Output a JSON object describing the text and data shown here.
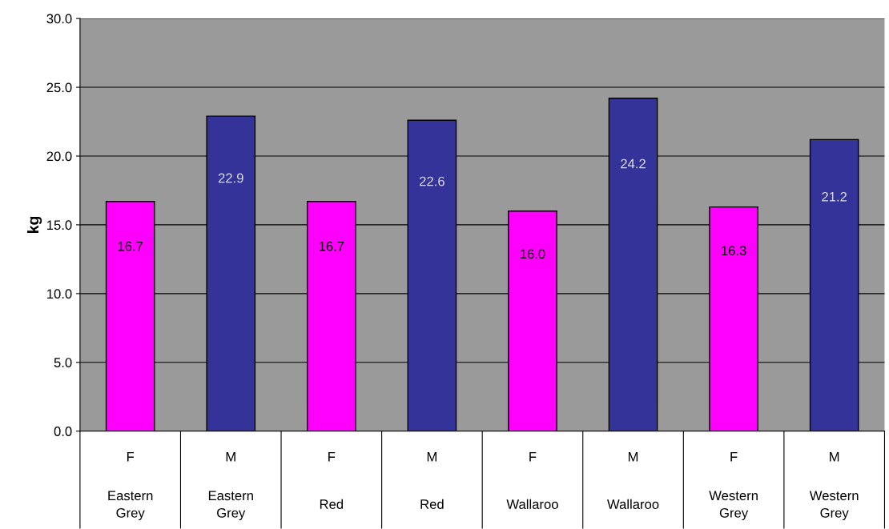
{
  "chart_data": {
    "type": "bar",
    "ylabel": "kg",
    "categories": [
      "F\nEastern\nGrey",
      "M\nEastern\nGrey",
      "F\nRed",
      "M\nRed",
      "F\nWallaroo",
      "M\nWallaroo",
      "F\nWestern\nGrey",
      "M\nWestern\nGrey"
    ],
    "values": [
      16.7,
      22.9,
      16.7,
      22.6,
      16.0,
      24.2,
      16.3,
      21.2
    ],
    "colors": [
      "#ff00ff",
      "#333399",
      "#ff00ff",
      "#333399",
      "#ff00ff",
      "#333399",
      "#ff00ff",
      "#333399"
    ],
    "value_labels": [
      "16.7",
      "22.9",
      "16.7",
      "22.6",
      "16.0",
      "24.2",
      "16.3",
      "21.2"
    ],
    "ylim": [
      0,
      30
    ],
    "yticks": [
      {
        "value": 0,
        "label": "0.0"
      },
      {
        "value": 5,
        "label": "5.0"
      },
      {
        "value": 10,
        "label": "10.0"
      },
      {
        "value": 15,
        "label": "15.0"
      },
      {
        "value": 20,
        "label": "20.0"
      },
      {
        "value": 25,
        "label": "25.0"
      },
      {
        "value": 30,
        "label": "30.0"
      }
    ],
    "grid": "y",
    "legend": false
  }
}
